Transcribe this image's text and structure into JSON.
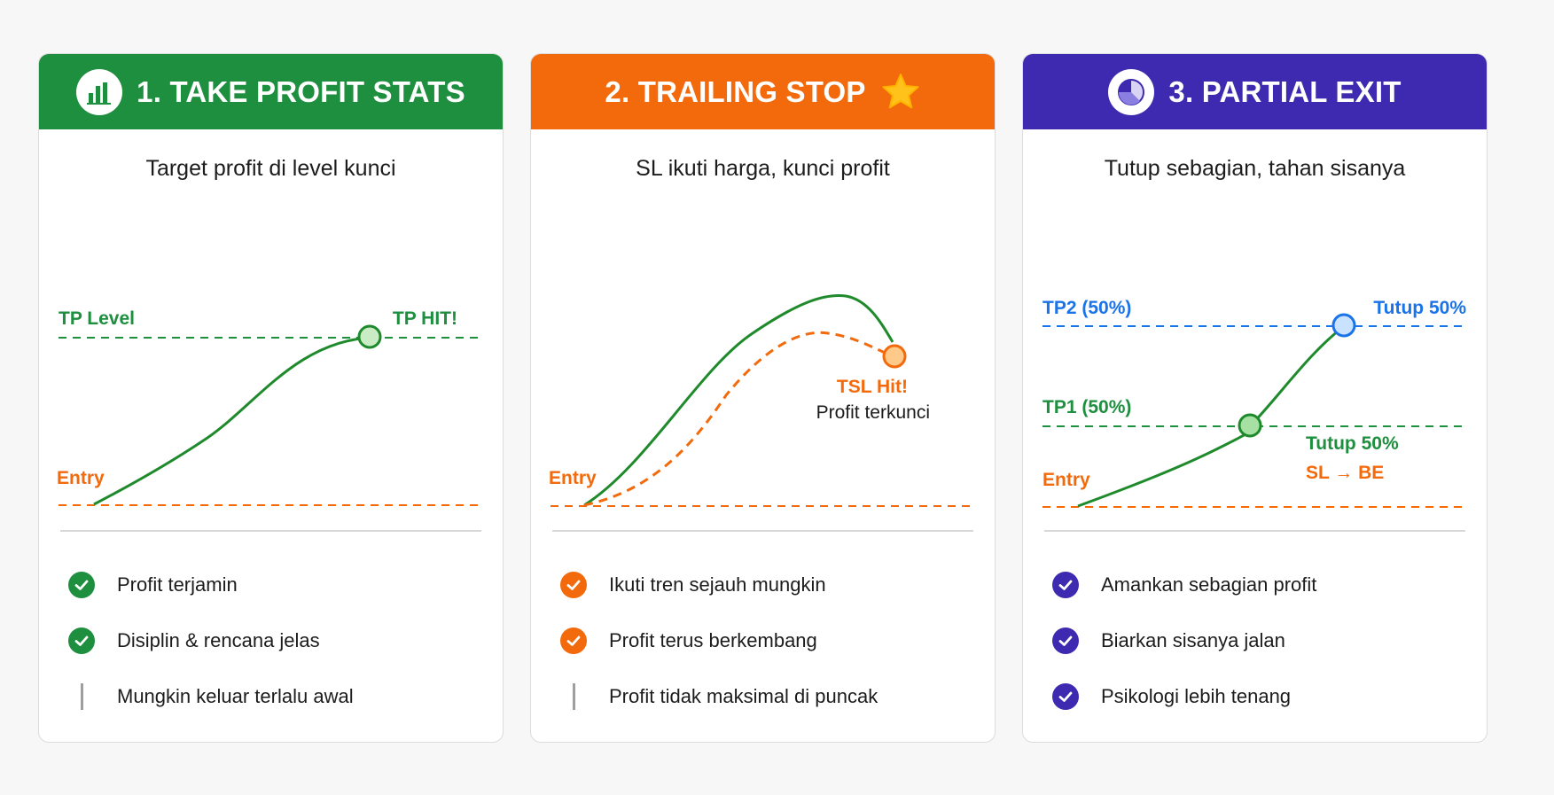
{
  "colors": {
    "green": "#1e8f3f",
    "orange": "#f26a0c",
    "purple": "#3d2ab0",
    "blue": "#1a73e8",
    "line_green": "#1f8a2c"
  },
  "cards": [
    {
      "title": "1. TAKE PROFIT STATS",
      "icon": "bar-chart-icon",
      "subtitle": "Target profit di level kunci",
      "labels": {
        "tp_level": "TP Level",
        "tp_hit": "TP HIT!",
        "entry": "Entry"
      },
      "items": [
        {
          "text": "Profit terjamin",
          "mark": "check-icon"
        },
        {
          "text": "Disiplin & rencana jelas",
          "mark": "check-icon"
        },
        {
          "text": "Mungkin keluar terlalu awal",
          "mark": "bar-icon"
        }
      ]
    },
    {
      "title": "2. TRAILING STOP",
      "icon": "star-icon",
      "subtitle": "SL ikuti harga, kunci profit",
      "labels": {
        "entry": "Entry",
        "tsl_hit": "TSL Hit!",
        "locked": "Profit terkunci"
      },
      "items": [
        {
          "text": "Ikuti tren sejauh mungkin",
          "mark": "check-icon"
        },
        {
          "text": "Profit terus berkembang",
          "mark": "check-icon"
        },
        {
          "text": "Profit tidak maksimal di puncak",
          "mark": "bar-icon"
        }
      ]
    },
    {
      "title": "3. PARTIAL EXIT",
      "icon": "pie-chart-icon",
      "subtitle": "Tutup sebagian, tahan sisanya",
      "labels": {
        "tp2": "TP2 (50%)",
        "close_top": "Tutup 50%",
        "tp1": "TP1 (50%)",
        "close_mid": "Tutup 50%",
        "sl_be": "SL → BE",
        "entry": "Entry"
      },
      "items": [
        {
          "text": "Amankan sebagian profit",
          "mark": "check-icon"
        },
        {
          "text": "Biarkan sisanya jalan",
          "mark": "check-icon"
        },
        {
          "text": "Psikologi lebih tenang",
          "mark": "check-icon"
        }
      ]
    }
  ]
}
